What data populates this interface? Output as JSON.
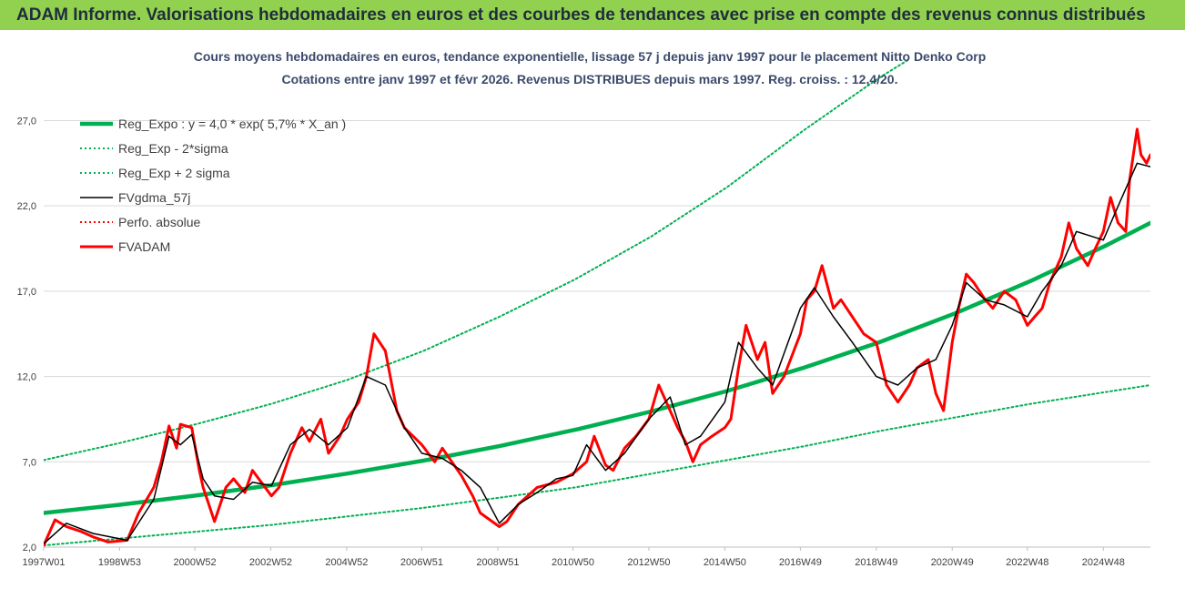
{
  "header": {
    "title": "ADAM Informe. Valorisations hebdomadaires en euros et des courbes de tendances avec prise en compte des revenus connus distribués"
  },
  "chart_data": {
    "type": "line",
    "title_line1": "Cours moyens hebdomadaires en euros, tendance exponentielle, lissage 57 j depuis janv 1997 pour le placement Nitto Denko Corp",
    "title_line2": "Cotations entre janv 1997 et févr 2026. Revenus DISTRIBUES depuis mars 1997. Reg. croiss. : 12,4/20.",
    "xlim": [
      1997.0,
      2026.15
    ],
    "ylim": [
      2.0,
      29.0
    ],
    "y_ticks": [
      2.0,
      7.0,
      12.0,
      17.0,
      22.0,
      27.0
    ],
    "y_tick_labels": [
      "2,0",
      "7,0",
      "12,0",
      "17,0",
      "22,0",
      "27,0"
    ],
    "x_ticks": [
      1997.0,
      1999.0,
      2000.98,
      2002.98,
      2004.98,
      2006.96,
      2008.96,
      2010.94,
      2012.94,
      2014.94,
      2016.93,
      2018.93,
      2020.93,
      2022.91,
      2024.91
    ],
    "x_tick_labels": [
      "1997W01",
      "1998W53",
      "2000W52",
      "2002W52",
      "2004W52",
      "2006W51",
      "2008W51",
      "2010W50",
      "2012W50",
      "2014W50",
      "2016W49",
      "2018W49",
      "2020W49",
      "2022W48",
      "2024W48"
    ],
    "grid": "horizontal",
    "legend_position": "top-left",
    "legend": [
      {
        "label": "Reg_Expo : y = 4,0 * exp( 5,7% *  X_an )",
        "color": "#00b050",
        "style": "solid-thick"
      },
      {
        "label": "Reg_Exp - 2*sigma",
        "color": "#00b050",
        "style": "dotted"
      },
      {
        "label": "Reg_Exp + 2 sigma",
        "color": "#00b050",
        "style": "dotted"
      },
      {
        "label": "FVgdma_57j",
        "color": "#000000",
        "style": "solid-thin"
      },
      {
        "label": "Perfo. absolue",
        "color": "#ff0000",
        "style": "dotted"
      },
      {
        "label": "FVADAM",
        "color": "#ff0000",
        "style": "solid"
      }
    ],
    "series": [
      {
        "name": "Reg_Expo : y = 4,0 * exp( 5,7% *  X_an )",
        "color": "#00b050",
        "x": [
          1997.0,
          1999.0,
          2001.0,
          2003.0,
          2005.0,
          2007.0,
          2009.0,
          2011.0,
          2013.0,
          2015.0,
          2017.0,
          2019.0,
          2021.0,
          2023.0,
          2025.0,
          2026.15
        ],
        "y": [
          4.0,
          4.48,
          5.02,
          5.63,
          6.31,
          7.07,
          7.92,
          8.88,
          9.95,
          11.15,
          12.5,
          14.0,
          15.7,
          17.6,
          19.7,
          21.0
        ]
      },
      {
        "name": "Reg_Exp - 2*sigma",
        "color": "#00b050",
        "x": [
          1997.0,
          1999.0,
          2001.0,
          2003.0,
          2005.0,
          2007.0,
          2009.0,
          2011.0,
          2013.0,
          2015.0,
          2017.0,
          2019.0,
          2021.0,
          2023.0,
          2025.0,
          2026.15
        ],
        "y": [
          2.1,
          2.5,
          2.9,
          3.3,
          3.8,
          4.3,
          4.9,
          5.5,
          6.3,
          7.1,
          7.9,
          8.8,
          9.6,
          10.4,
          11.1,
          11.5
        ]
      },
      {
        "name": "Reg_Exp + 2 sigma",
        "color": "#00b050",
        "x": [
          1997.0,
          1999.0,
          2001.0,
          2003.0,
          2005.0,
          2007.0,
          2009.0,
          2011.0,
          2013.0,
          2015.0,
          2017.0,
          2019.0,
          2019.8
        ],
        "y": [
          7.1,
          8.1,
          9.2,
          10.4,
          11.8,
          13.5,
          15.5,
          17.7,
          20.2,
          23.1,
          26.4,
          29.5,
          30.6
        ]
      },
      {
        "name": "FVgdma_57j",
        "color": "#000000",
        "x": [
          1997.0,
          1997.6,
          1998.3,
          1999.2,
          1999.9,
          2000.3,
          2000.6,
          2000.9,
          2001.2,
          2001.5,
          2002.0,
          2002.5,
          2003.0,
          2003.5,
          2004.0,
          2004.5,
          2005.0,
          2005.5,
          2006.0,
          2006.5,
          2006.96,
          2007.5,
          2008.0,
          2008.5,
          2009.0,
          2009.5,
          2010.0,
          2010.5,
          2010.94,
          2011.3,
          2011.8,
          2012.3,
          2012.94,
          2013.5,
          2013.9,
          2014.3,
          2014.94,
          2015.3,
          2015.8,
          2016.2,
          2016.93,
          2017.3,
          2017.8,
          2018.3,
          2018.93,
          2019.5,
          2020.0,
          2020.5,
          2020.93,
          2021.3,
          2021.8,
          2022.3,
          2022.91,
          2023.3,
          2023.8,
          2024.2,
          2024.91,
          2025.4,
          2025.8,
          2026.15
        ],
        "y": [
          2.2,
          3.4,
          2.8,
          2.4,
          4.8,
          8.5,
          8.0,
          8.6,
          6.0,
          5.0,
          4.8,
          5.8,
          5.6,
          8.0,
          8.9,
          8.0,
          9.0,
          12.0,
          11.5,
          9.0,
          7.5,
          7.2,
          6.5,
          5.5,
          3.4,
          4.5,
          5.2,
          6.0,
          6.2,
          8.0,
          6.5,
          7.5,
          9.5,
          10.8,
          8.0,
          8.5,
          10.5,
          14.0,
          12.5,
          11.5,
          16.0,
          17.2,
          15.5,
          14.0,
          12.0,
          11.5,
          12.5,
          13.0,
          15.0,
          17.5,
          16.5,
          16.2,
          15.5,
          17.0,
          18.5,
          20.5,
          20.0,
          22.5,
          24.5,
          24.3
        ]
      },
      {
        "name": "Perfo. absolue",
        "color": "#ff0000",
        "x": [],
        "y": []
      },
      {
        "name": "FVADAM",
        "color": "#ff0000",
        "x": [
          1997.0,
          1997.3,
          1997.6,
          1998.0,
          1998.3,
          1998.7,
          1999.2,
          1999.5,
          1999.9,
          2000.1,
          2000.3,
          2000.5,
          2000.6,
          2000.9,
          2001.1,
          2001.2,
          2001.5,
          2001.8,
          2002.0,
          2002.3,
          2002.5,
          2003.0,
          2003.2,
          2003.5,
          2003.8,
          2004.0,
          2004.3,
          2004.5,
          2004.8,
          2005.0,
          2005.3,
          2005.5,
          2005.7,
          2006.0,
          2006.3,
          2006.5,
          2006.96,
          2007.3,
          2007.5,
          2008.0,
          2008.3,
          2008.5,
          2009.0,
          2009.2,
          2009.5,
          2010.0,
          2010.5,
          2010.94,
          2011.3,
          2011.5,
          2011.8,
          2012.0,
          2012.3,
          2012.6,
          2012.94,
          2013.2,
          2013.5,
          2013.7,
          2013.9,
          2014.1,
          2014.3,
          2014.6,
          2014.94,
          2015.1,
          2015.3,
          2015.5,
          2015.8,
          2016.0,
          2016.2,
          2016.5,
          2016.93,
          2017.1,
          2017.3,
          2017.5,
          2017.8,
          2018.0,
          2018.3,
          2018.6,
          2018.93,
          2019.2,
          2019.5,
          2019.8,
          2020.0,
          2020.3,
          2020.5,
          2020.7,
          2020.93,
          2021.1,
          2021.3,
          2021.5,
          2021.8,
          2022.0,
          2022.3,
          2022.6,
          2022.91,
          2023.1,
          2023.3,
          2023.5,
          2023.8,
          2024.0,
          2024.2,
          2024.5,
          2024.7,
          2024.91,
          2025.1,
          2025.3,
          2025.5,
          2025.6,
          2025.8,
          2025.9,
          2026.05,
          2026.15
        ],
        "y": [
          2.1,
          3.6,
          3.2,
          2.9,
          2.6,
          2.3,
          2.4,
          4.0,
          5.5,
          7.0,
          9.1,
          7.8,
          9.2,
          9.0,
          6.5,
          5.5,
          3.5,
          5.5,
          6.0,
          5.2,
          6.5,
          5.0,
          5.5,
          7.5,
          9.0,
          8.2,
          9.5,
          7.5,
          8.5,
          9.5,
          10.5,
          12.0,
          14.5,
          13.5,
          10.0,
          9.0,
          8.0,
          7.0,
          7.8,
          6.2,
          5.0,
          4.0,
          3.2,
          3.5,
          4.5,
          5.5,
          5.8,
          6.3,
          7.0,
          8.5,
          6.8,
          6.5,
          7.8,
          8.5,
          9.5,
          11.5,
          10.0,
          9.0,
          8.2,
          7.0,
          8.0,
          8.5,
          9.0,
          9.5,
          12.5,
          15.0,
          13.0,
          14.0,
          11.0,
          12.0,
          14.5,
          16.5,
          17.0,
          18.5,
          16.0,
          16.5,
          15.5,
          14.5,
          14.0,
          11.5,
          10.5,
          11.5,
          12.5,
          13.0,
          11.0,
          10.0,
          14.0,
          16.0,
          18.0,
          17.5,
          16.5,
          16.0,
          17.0,
          16.5,
          15.0,
          15.5,
          16.0,
          17.5,
          19.0,
          21.0,
          19.5,
          18.5,
          19.5,
          20.5,
          22.5,
          21.0,
          20.5,
          23.5,
          26.5,
          25.0,
          24.5,
          25.0
        ]
      }
    ]
  }
}
